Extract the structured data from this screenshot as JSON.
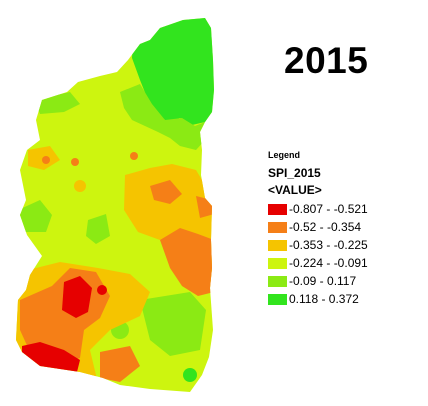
{
  "map": {
    "title": "2015",
    "legend": {
      "heading": "Legend",
      "layer": "SPI_2015",
      "field": "<VALUE>",
      "classes": [
        {
          "label": "-0.807 - -0.521",
          "color": "#e60000"
        },
        {
          "label": "-0.52 - -0.354",
          "color": "#f57f17"
        },
        {
          "label": "-0.353 - -0.225",
          "color": "#f5c400"
        },
        {
          "label": "-0.224 - -0.091",
          "color": "#cdf50f"
        },
        {
          "label": "-0.09 - 0.117",
          "color": "#8bea14"
        },
        {
          "label": "0.118 - 0.372",
          "color": "#32e41e"
        }
      ]
    }
  }
}
